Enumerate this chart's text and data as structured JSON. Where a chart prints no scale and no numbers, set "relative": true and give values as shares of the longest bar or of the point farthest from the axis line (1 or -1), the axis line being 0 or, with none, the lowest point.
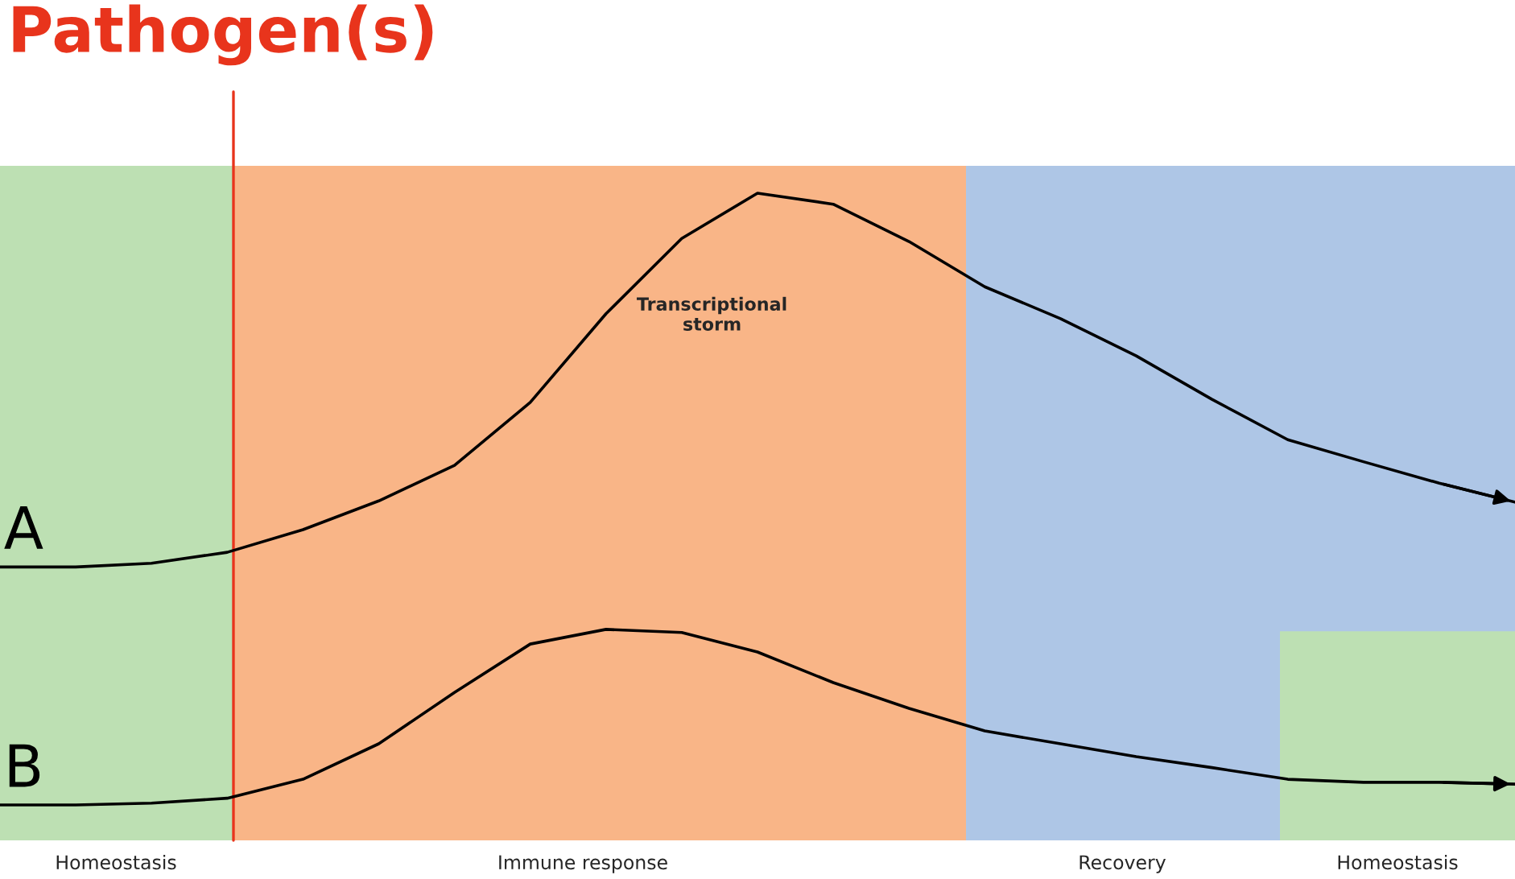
{
  "chart_data": {
    "type": "line",
    "relative": true,
    "title": "Pathogen(s)",
    "categories": [
      null,
      null,
      null,
      null,
      null,
      null,
      null,
      null,
      null,
      null,
      null,
      null,
      null,
      null,
      null,
      null,
      null,
      null,
      null,
      null,
      null
    ],
    "series": [
      {
        "name": "A",
        "color": "#000000",
        "values": [
          0.389,
          0.389,
          0.395,
          0.413,
          0.45,
          0.497,
          0.555,
          0.658,
          0.803,
          0.926,
          1,
          0.982,
          0.921,
          0.847,
          0.795,
          0.734,
          0.663,
          0.597,
          0.561,
          0.526,
          0.495
        ]
      },
      {
        "name": "B",
        "color": "#000000",
        "values": [
          0,
          0,
          0.003,
          0.011,
          0.042,
          0.1,
          0.184,
          0.263,
          0.287,
          0.282,
          0.25,
          0.2,
          0.158,
          0.121,
          0.1,
          0.079,
          0.061,
          0.042,
          0.037,
          0.037,
          0.034
        ]
      }
    ],
    "annotations": [
      "Transcriptional\nstorm",
      "Homeostasis",
      "Immune response",
      "Recovery",
      "Homeostasis"
    ]
  }
}
